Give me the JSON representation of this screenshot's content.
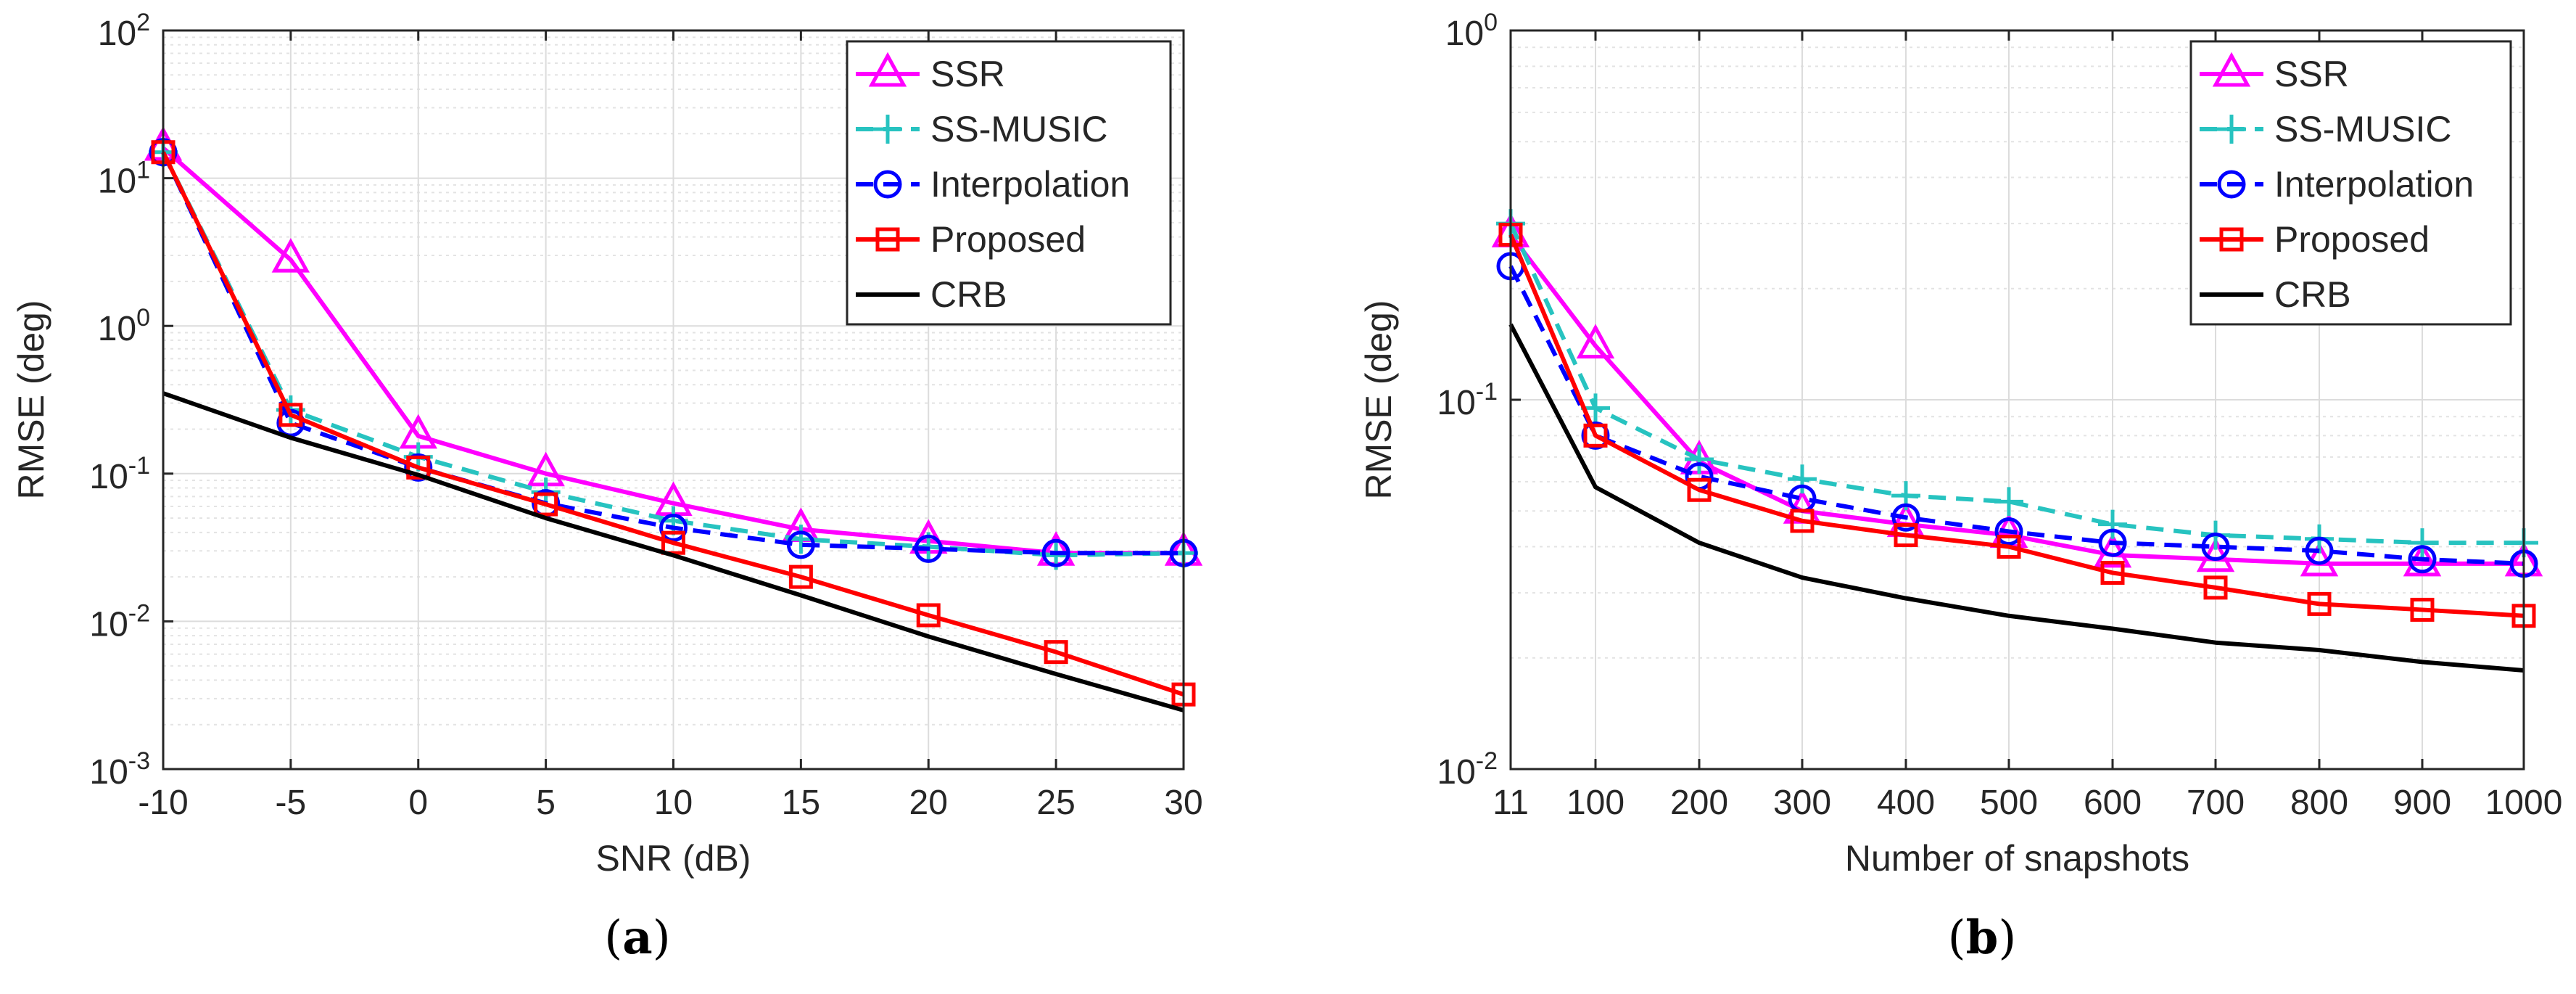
{
  "chart_data": [
    {
      "type": "line",
      "caption": "a",
      "xlabel": "SNR (dB)",
      "ylabel": "RMSE (deg)",
      "yscale": "log",
      "ylim": [
        0.001,
        100
      ],
      "xlim": [
        -10,
        30
      ],
      "x_ticks": [
        "-10",
        "-5",
        "0",
        "5",
        "10",
        "15",
        "20",
        "25",
        "30"
      ],
      "y_ticks": [
        {
          "base": "10",
          "exp": "2"
        },
        {
          "base": "10",
          "exp": "1"
        },
        {
          "base": "10",
          "exp": "0"
        },
        {
          "base": "10",
          "exp": "-1"
        },
        {
          "base": "10",
          "exp": "-2"
        },
        {
          "base": "10",
          "exp": "-3"
        }
      ],
      "legend_position": "top-right",
      "x": [
        -10,
        -5,
        0,
        5,
        10,
        15,
        20,
        25,
        30
      ],
      "series": [
        {
          "name": "SSR",
          "color": "#ff00ff",
          "marker": "triangle",
          "dash": "solid",
          "values": [
            16,
            2.8,
            0.18,
            0.1,
            0.063,
            0.042,
            0.035,
            0.029,
            0.029
          ]
        },
        {
          "name": "SS-MUSIC",
          "color": "#27c3c0",
          "marker": "plus",
          "dash": "dashed",
          "values": [
            15,
            0.27,
            0.13,
            0.075,
            0.048,
            0.036,
            0.032,
            0.028,
            0.029
          ]
        },
        {
          "name": "Interpolation",
          "color": "#0000ff",
          "marker": "circle",
          "dash": "dashed",
          "values": [
            15,
            0.22,
            0.11,
            0.063,
            0.043,
            0.033,
            0.031,
            0.029,
            0.029
          ]
        },
        {
          "name": "Proposed",
          "color": "#ff0000",
          "marker": "square",
          "dash": "solid",
          "values": [
            15,
            0.25,
            0.11,
            0.062,
            0.034,
            0.02,
            0.011,
            0.0062,
            0.0032
          ]
        },
        {
          "name": "CRB",
          "color": "#000000",
          "marker": "none",
          "dash": "solid",
          "values": [
            0.35,
            0.175,
            0.098,
            0.05,
            0.028,
            0.015,
            0.0079,
            0.0044,
            0.0025
          ]
        }
      ]
    },
    {
      "type": "line",
      "caption": "b",
      "xlabel": "Number of snapshots",
      "ylabel": "RMSE (deg)",
      "yscale": "log",
      "ylim": [
        0.01,
        1
      ],
      "xlim": [
        11,
        1000
      ],
      "x_ticks": [
        "11",
        "100",
        "200",
        "300",
        "400",
        "500",
        "600",
        "700",
        "800",
        "900",
        "1000"
      ],
      "y_ticks": [
        {
          "base": "10",
          "exp": "0"
        },
        {
          "base": "10",
          "exp": "-1"
        },
        {
          "base": "10",
          "exp": "-2"
        }
      ],
      "legend_position": "top-right",
      "x": [
        11,
        100,
        200,
        300,
        400,
        500,
        600,
        700,
        800,
        900,
        1000
      ],
      "series": [
        {
          "name": "SSR",
          "color": "#ff00ff",
          "marker": "triangle",
          "dash": "solid",
          "values": [
            0.28,
            0.14,
            0.068,
            0.05,
            0.046,
            0.043,
            0.038,
            0.037,
            0.036,
            0.036,
            0.036
          ]
        },
        {
          "name": "SS-MUSIC",
          "color": "#27c3c0",
          "marker": "plus",
          "dash": "dashed",
          "values": [
            0.3,
            0.095,
            0.069,
            0.061,
            0.055,
            0.053,
            0.046,
            0.043,
            0.042,
            0.041,
            0.041
          ]
        },
        {
          "name": "Interpolation",
          "color": "#0000ff",
          "marker": "circle",
          "dash": "dashed",
          "values": [
            0.23,
            0.08,
            0.062,
            0.054,
            0.048,
            0.044,
            0.041,
            0.04,
            0.039,
            0.037,
            0.036
          ]
        },
        {
          "name": "Proposed",
          "color": "#ff0000",
          "marker": "square",
          "dash": "solid",
          "values": [
            0.28,
            0.08,
            0.057,
            0.047,
            0.043,
            0.04,
            0.034,
            0.031,
            0.028,
            0.027,
            0.026
          ]
        },
        {
          "name": "CRB",
          "color": "#000000",
          "marker": "none",
          "dash": "solid",
          "values": [
            0.16,
            0.058,
            0.041,
            0.033,
            0.029,
            0.026,
            0.024,
            0.022,
            0.021,
            0.0195,
            0.0185
          ]
        }
      ]
    }
  ]
}
